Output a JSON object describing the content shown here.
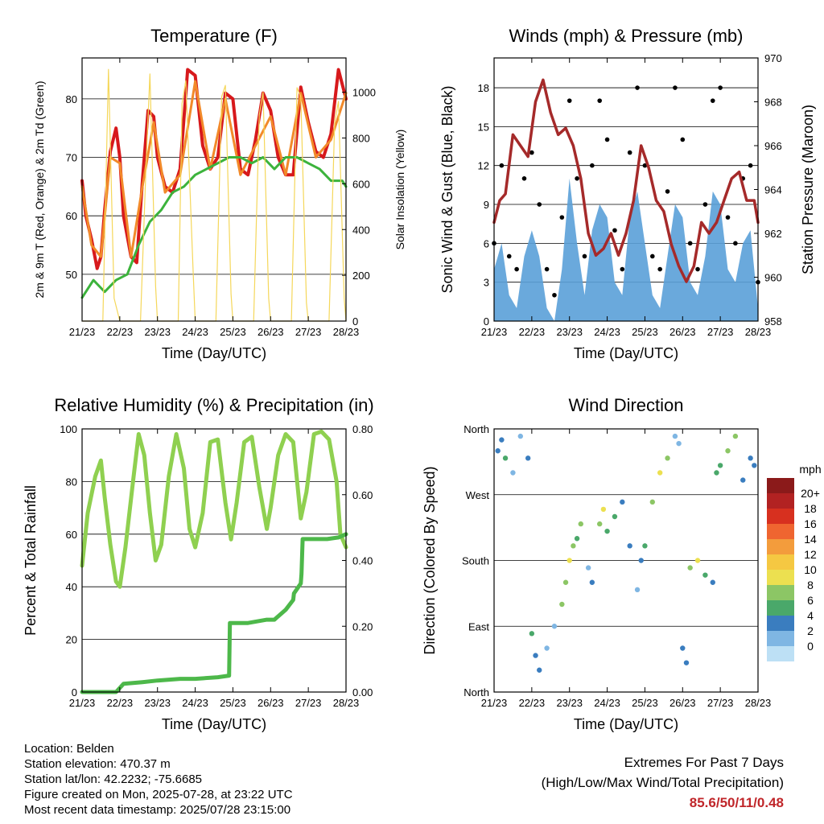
{
  "colors": {
    "temp_2m": "#d7191c",
    "temp_9m": "#f28a2a",
    "dewpoint": "#3cb33c",
    "solar": "#f5d75a",
    "gust": "#000000",
    "wind": "#5aa0d8",
    "pressure": "#a52a2a",
    "rh": "#8fd050",
    "rain": "#4db84a",
    "extremes": "#c0262a"
  },
  "chart_data": [
    {
      "type": "line",
      "title": "Temperature (F)",
      "xlabel": "Time (Day/UTC)",
      "ylabel": "2m & 9m T (Red, Orange) & 2m Td (Green)",
      "y2label": "Solar Insolation (Yellow)",
      "xticks": [
        "21/23",
        "22/23",
        "23/23",
        "24/23",
        "25/23",
        "26/23",
        "27/23",
        "28/23"
      ],
      "xlim": [
        0,
        7
      ],
      "ylim": [
        42,
        87
      ],
      "yticks": [
        50,
        60,
        70,
        80
      ],
      "y2lim": [
        0,
        1150
      ],
      "y2ticks": [
        0,
        200,
        400,
        600,
        800,
        1000
      ],
      "grid": true,
      "series": [
        {
          "name": "2m T",
          "color": "#d7191c",
          "x": [
            0,
            0.1,
            0.25,
            0.4,
            0.5,
            0.6,
            0.75,
            0.9,
            1.0,
            1.1,
            1.3,
            1.45,
            1.6,
            1.75,
            1.9,
            2.0,
            2.2,
            2.4,
            2.6,
            2.8,
            3.0,
            3.2,
            3.4,
            3.6,
            3.8,
            4.0,
            4.2,
            4.4,
            4.6,
            4.8,
            5.0,
            5.2,
            5.4,
            5.6,
            5.8,
            6.0,
            6.2,
            6.4,
            6.6,
            6.8,
            7.0
          ],
          "values": [
            66,
            60,
            56,
            51,
            53,
            61,
            71,
            75,
            70,
            60,
            53,
            52,
            66,
            78,
            77,
            70,
            65,
            64,
            68,
            85,
            84,
            72,
            68,
            70,
            81,
            80,
            68,
            67,
            73,
            81,
            78,
            70,
            67,
            67,
            82,
            76,
            71,
            70,
            74,
            85,
            80
          ]
        },
        {
          "name": "9m T",
          "color": "#f28a2a",
          "x": [
            0,
            0.25,
            0.5,
            0.75,
            1.0,
            1.3,
            1.6,
            1.9,
            2.2,
            2.6,
            3.0,
            3.4,
            3.8,
            4.2,
            4.6,
            5.0,
            5.4,
            5.8,
            6.2,
            6.6,
            7.0
          ],
          "values": [
            65,
            55,
            53,
            70,
            69,
            53,
            65,
            76,
            64,
            67,
            83,
            68,
            80,
            67,
            72,
            77,
            67,
            81,
            70,
            73,
            81
          ]
        },
        {
          "name": "2m Td",
          "color": "#3cb33c",
          "x": [
            0,
            0.3,
            0.6,
            0.9,
            1.2,
            1.5,
            1.8,
            2.1,
            2.4,
            2.7,
            3.0,
            3.3,
            3.6,
            3.9,
            4.2,
            4.5,
            4.8,
            5.1,
            5.4,
            5.7,
            6.0,
            6.3,
            6.6,
            6.9,
            7.0
          ],
          "values": [
            46,
            49,
            47,
            49,
            50,
            55,
            59,
            61,
            64,
            65,
            67,
            68,
            69,
            70,
            70,
            69,
            70,
            68,
            70,
            70,
            69,
            68,
            66,
            66,
            65
          ]
        },
        {
          "name": "Solar",
          "color": "#f5d75a",
          "axis": "y2",
          "x": [
            0,
            0.55,
            0.7,
            0.85,
            1.0,
            1.55,
            1.7,
            1.8,
            1.95,
            2.0,
            2.55,
            2.65,
            2.75,
            2.95,
            3.0,
            3.55,
            3.7,
            3.8,
            3.95,
            4.0,
            4.55,
            4.7,
            4.8,
            4.95,
            5.0,
            5.55,
            5.7,
            5.8,
            5.95,
            6.0,
            6.55,
            6.7,
            6.8,
            6.95,
            7.0
          ],
          "values": [
            0,
            0,
            1100,
            100,
            0,
            0,
            700,
            1080,
            150,
            0,
            0,
            950,
            1050,
            200,
            0,
            0,
            980,
            1030,
            120,
            0,
            0,
            900,
            1000,
            100,
            0,
            0,
            1020,
            980,
            80,
            0,
            0,
            870,
            960,
            100,
            0
          ]
        }
      ]
    },
    {
      "type": "scatter",
      "title": "Winds (mph) & Pressure (mb)",
      "xlabel": "Time (Day/UTC)",
      "ylabel": "Sonic Wind & Gust (Blue, Black)",
      "y2label": "Station Pressure (Maroon)",
      "xticks": [
        "21/23",
        "22/23",
        "23/23",
        "24/23",
        "25/23",
        "26/23",
        "27/23",
        "28/23"
      ],
      "xlim": [
        0,
        7
      ],
      "ylim": [
        0,
        20.3
      ],
      "yticks": [
        0,
        3,
        6,
        9,
        12,
        15,
        18
      ],
      "y2lim": [
        958,
        970
      ],
      "y2ticks": [
        958,
        960,
        962,
        964,
        966,
        968,
        970
      ],
      "grid": true,
      "series": [
        {
          "name": "Gust",
          "color": "#000000",
          "x": [
            0,
            0.2,
            0.4,
            0.6,
            0.8,
            1.0,
            1.2,
            1.4,
            1.6,
            1.8,
            2.0,
            2.2,
            2.4,
            2.6,
            2.8,
            3.0,
            3.2,
            3.4,
            3.6,
            3.8,
            4.0,
            4.2,
            4.4,
            4.6,
            4.8,
            5.0,
            5.2,
            5.4,
            5.6,
            5.8,
            6.0,
            6.2,
            6.4,
            6.6,
            6.8,
            7.0
          ],
          "values": [
            6,
            12,
            5,
            4,
            11,
            13,
            9,
            4,
            2,
            8,
            17,
            11,
            5,
            12,
            17,
            14,
            7,
            4,
            13,
            18,
            12,
            5,
            4,
            10,
            18,
            14,
            6,
            4,
            9,
            17,
            18,
            8,
            6,
            11,
            12,
            3
          ]
        },
        {
          "name": "Wind",
          "color": "#5aa0d8",
          "x": [
            0,
            0.2,
            0.4,
            0.6,
            0.8,
            1.0,
            1.2,
            1.4,
            1.6,
            1.8,
            2.0,
            2.2,
            2.4,
            2.6,
            2.8,
            3.0,
            3.2,
            3.4,
            3.6,
            3.8,
            4.0,
            4.2,
            4.4,
            4.6,
            4.8,
            5.0,
            5.2,
            5.4,
            5.6,
            5.8,
            6.0,
            6.2,
            6.4,
            6.6,
            6.8,
            7.0
          ],
          "values": [
            4,
            6,
            2,
            1,
            5,
            7,
            5,
            1,
            0,
            4,
            11,
            6,
            2,
            7,
            9,
            8,
            3,
            2,
            8,
            10,
            6,
            2,
            1,
            5,
            9,
            8,
            3,
            2,
            5,
            10,
            9,
            4,
            3,
            6,
            7,
            1
          ]
        },
        {
          "name": "Pressure",
          "color": "#a52a2a",
          "axis": "y2",
          "type": "line",
          "x": [
            0,
            0.15,
            0.3,
            0.5,
            0.7,
            0.9,
            1.1,
            1.3,
            1.5,
            1.7,
            1.9,
            2.1,
            2.3,
            2.5,
            2.7,
            2.9,
            3.1,
            3.3,
            3.5,
            3.7,
            3.9,
            4.1,
            4.3,
            4.5,
            4.7,
            4.9,
            5.1,
            5.3,
            5.5,
            5.7,
            5.9,
            6.1,
            6.3,
            6.5,
            6.7,
            6.9,
            7.0
          ],
          "values": [
            962.5,
            963.5,
            963.8,
            966.5,
            966,
            965.5,
            968,
            969,
            967.5,
            966.5,
            966.8,
            966,
            964.5,
            962,
            961,
            961.3,
            962,
            961,
            962,
            963.5,
            966,
            965,
            963.5,
            963,
            961.5,
            960.5,
            959.8,
            960.5,
            962.5,
            962,
            962.5,
            963.5,
            964.5,
            964.8,
            963.5,
            963.5,
            962.5
          ]
        }
      ]
    },
    {
      "type": "line",
      "title": "Relative Humidity (%) & Precipitation (in)",
      "xlabel": "Time (Day/UTC)",
      "ylabel": "Percent & Total Rainfall",
      "xticks": [
        "21/23",
        "22/23",
        "23/23",
        "24/23",
        "25/23",
        "26/23",
        "27/23",
        "28/23"
      ],
      "xlim": [
        0,
        7
      ],
      "ylim": [
        0,
        100
      ],
      "yticks": [
        0,
        20,
        40,
        60,
        80,
        100
      ],
      "y2lim": [
        0,
        0.8
      ],
      "y2ticks": [
        "0.00",
        "0.20",
        "0.40",
        "0.60",
        "0.80"
      ],
      "grid": true,
      "series": [
        {
          "name": "RH",
          "color": "#8fd050",
          "x": [
            0,
            0.15,
            0.35,
            0.5,
            0.6,
            0.75,
            0.9,
            1.0,
            1.15,
            1.35,
            1.5,
            1.65,
            1.8,
            1.95,
            2.1,
            2.3,
            2.5,
            2.7,
            2.85,
            3.0,
            3.2,
            3.4,
            3.6,
            3.8,
            3.95,
            4.1,
            4.3,
            4.5,
            4.7,
            4.9,
            5.0,
            5.2,
            5.4,
            5.6,
            5.8,
            5.95,
            6.15,
            6.35,
            6.55,
            6.75,
            6.85,
            7.0
          ],
          "values": [
            48,
            68,
            82,
            88,
            74,
            56,
            42,
            40,
            55,
            80,
            98,
            90,
            68,
            50,
            56,
            82,
            98,
            85,
            62,
            55,
            68,
            95,
            96,
            72,
            58,
            72,
            95,
            97,
            78,
            62,
            70,
            90,
            98,
            95,
            66,
            76,
            98,
            99,
            96,
            80,
            60,
            55
          ]
        },
        {
          "name": "Rain",
          "color": "#4db84a",
          "axis": "y2",
          "x": [
            0,
            0.5,
            0.9,
            1.1,
            1.6,
            2.0,
            2.6,
            3.0,
            3.6,
            3.9,
            3.92,
            4.4,
            4.9,
            5.1,
            5.15,
            5.4,
            5.6,
            5.62,
            5.8,
            5.82,
            5.85,
            6.0,
            6.5,
            6.8,
            7.0
          ],
          "values": [
            0,
            0,
            0,
            0.025,
            0.03,
            0.035,
            0.04,
            0.04,
            0.045,
            0.05,
            0.21,
            0.21,
            0.22,
            0.22,
            0.225,
            0.25,
            0.28,
            0.3,
            0.33,
            0.36,
            0.465,
            0.465,
            0.465,
            0.47,
            0.48
          ]
        }
      ]
    },
    {
      "type": "scatter",
      "title": "Wind Direction",
      "xlabel": "Time (Day/UTC)",
      "ylabel": "Direction (Colored By Speed)",
      "xticks": [
        "21/23",
        "22/23",
        "23/23",
        "24/23",
        "25/23",
        "26/23",
        "27/23",
        "28/23"
      ],
      "xlim": [
        0,
        7
      ],
      "ylim": [
        0,
        360
      ],
      "yticks": [
        "North",
        "East",
        "South",
        "West",
        "North"
      ],
      "grid": true,
      "legend": {
        "title": "mph",
        "placement": "right",
        "labels": [
          "20+",
          "18",
          "16",
          "14",
          "12",
          "10",
          "8",
          "6",
          "4",
          "2",
          "0"
        ],
        "colors": [
          "#8b1a1a",
          "#b22222",
          "#d7301f",
          "#ef6530",
          "#f39c3c",
          "#f5c842",
          "#ece050",
          "#8cc665",
          "#4aa86a",
          "#3a7dbf",
          "#7fb6e3",
          "#bde0f5"
        ]
      },
      "series": [
        {
          "name": "Direction",
          "x": [
            0.1,
            0.2,
            0.3,
            0.5,
            0.7,
            0.9,
            1.0,
            1.1,
            1.2,
            1.4,
            1.6,
            1.8,
            1.9,
            2.0,
            2.1,
            2.2,
            2.3,
            2.5,
            2.6,
            2.8,
            2.9,
            3.0,
            3.2,
            3.4,
            3.6,
            3.8,
            3.9,
            4.0,
            4.2,
            4.4,
            4.6,
            4.8,
            4.9,
            5.0,
            5.1,
            5.2,
            5.4,
            5.6,
            5.8,
            5.9,
            6.0,
            6.2,
            6.4,
            6.6,
            6.8,
            6.9
          ],
          "values": [
            330,
            345,
            320,
            300,
            350,
            320,
            80,
            50,
            30,
            60,
            90,
            120,
            150,
            180,
            200,
            210,
            230,
            170,
            150,
            230,
            250,
            220,
            240,
            260,
            200,
            140,
            180,
            200,
            260,
            300,
            320,
            350,
            340,
            60,
            40,
            170,
            180,
            160,
            150,
            300,
            310,
            330,
            350,
            290,
            320,
            310
          ],
          "speeds": [
            4,
            3,
            5,
            2,
            1,
            3,
            6,
            4,
            3,
            2,
            1,
            7,
            8,
            9,
            7,
            6,
            8,
            2,
            3,
            8,
            9,
            6,
            5,
            4,
            3,
            2,
            3,
            6,
            8,
            9,
            7,
            2,
            1,
            4,
            3,
            8,
            9,
            5,
            4,
            6,
            5,
            8,
            7,
            3,
            4,
            3
          ]
        }
      ]
    }
  ],
  "footer": {
    "location": "Location: Belden",
    "elevation": "Station elevation: 470.37 m",
    "latlon": "Station lat/lon: 42.2232; -75.6685",
    "created": "Figure created on Mon, 2025-07-28, at 23:22 UTC",
    "recent": "Most recent data timestamp: 2025/07/28 23:15:00"
  },
  "extremes": {
    "title": "Extremes For Past 7 Days",
    "subtitle": "(High/Low/Max Wind/Total Precipitation)",
    "values": "85.6/50/11/0.48"
  }
}
